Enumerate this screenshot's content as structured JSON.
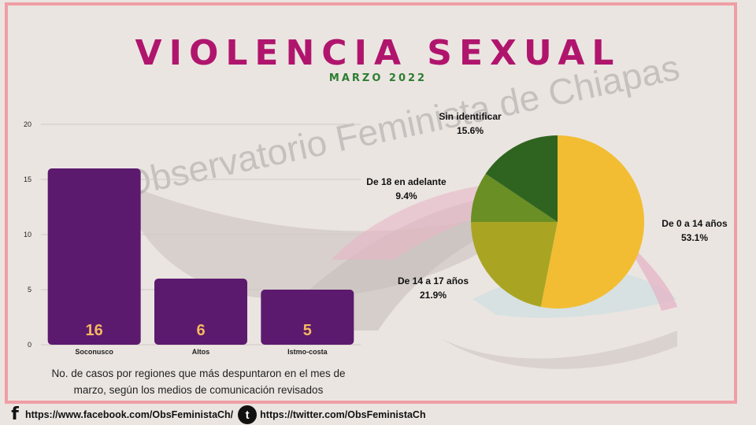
{
  "header": {
    "title": "VIOLENCIA SEXUAL",
    "subtitle": "MARZO 2022"
  },
  "watermark": "Observatorio Feminista de Chiapas",
  "caption_lines": [
    "No. de casos por regiones que más despuntaron en el mes de",
    "marzo, según los medios de comunicación revisados"
  ],
  "footer": {
    "facebook_url": "https://www.facebook.com/ObsFeministaCh/",
    "twitter_url": "https://twitter.com/ObsFeministaCh"
  },
  "colors": {
    "title": "#b0156d",
    "subtitle": "#2e7d32",
    "bar": "#5c1a6e",
    "bar_label": "#f4b860",
    "frame": "#ef9ea6"
  },
  "icons": [
    "facebook-icon",
    "twitter-icon"
  ],
  "chart_data": [
    {
      "type": "bar",
      "categories": [
        "Soconusco",
        "Altos",
        "Istmo-costa"
      ],
      "values": [
        16,
        6,
        5
      ],
      "ylim": [
        0,
        20
      ],
      "yticks": [
        0,
        5,
        10,
        15,
        20
      ],
      "grid": true,
      "data_labels": true
    },
    {
      "type": "pie",
      "slices": [
        {
          "label": "De 0 a 14 años",
          "value": 53.1,
          "display": "53.1%",
          "color": "#f2bd33"
        },
        {
          "label": "De 14 a 17 años",
          "value": 21.9,
          "display": "21.9%",
          "color": "#a9a523"
        },
        {
          "label": "De 18 en adelante",
          "value": 9.4,
          "display": "9.4%",
          "color": "#6a8f24"
        },
        {
          "label": "Sin identificar",
          "value": 15.6,
          "display": "15.6%",
          "color": "#2f6420"
        }
      ],
      "start": "top",
      "direction": "clockwise"
    }
  ]
}
